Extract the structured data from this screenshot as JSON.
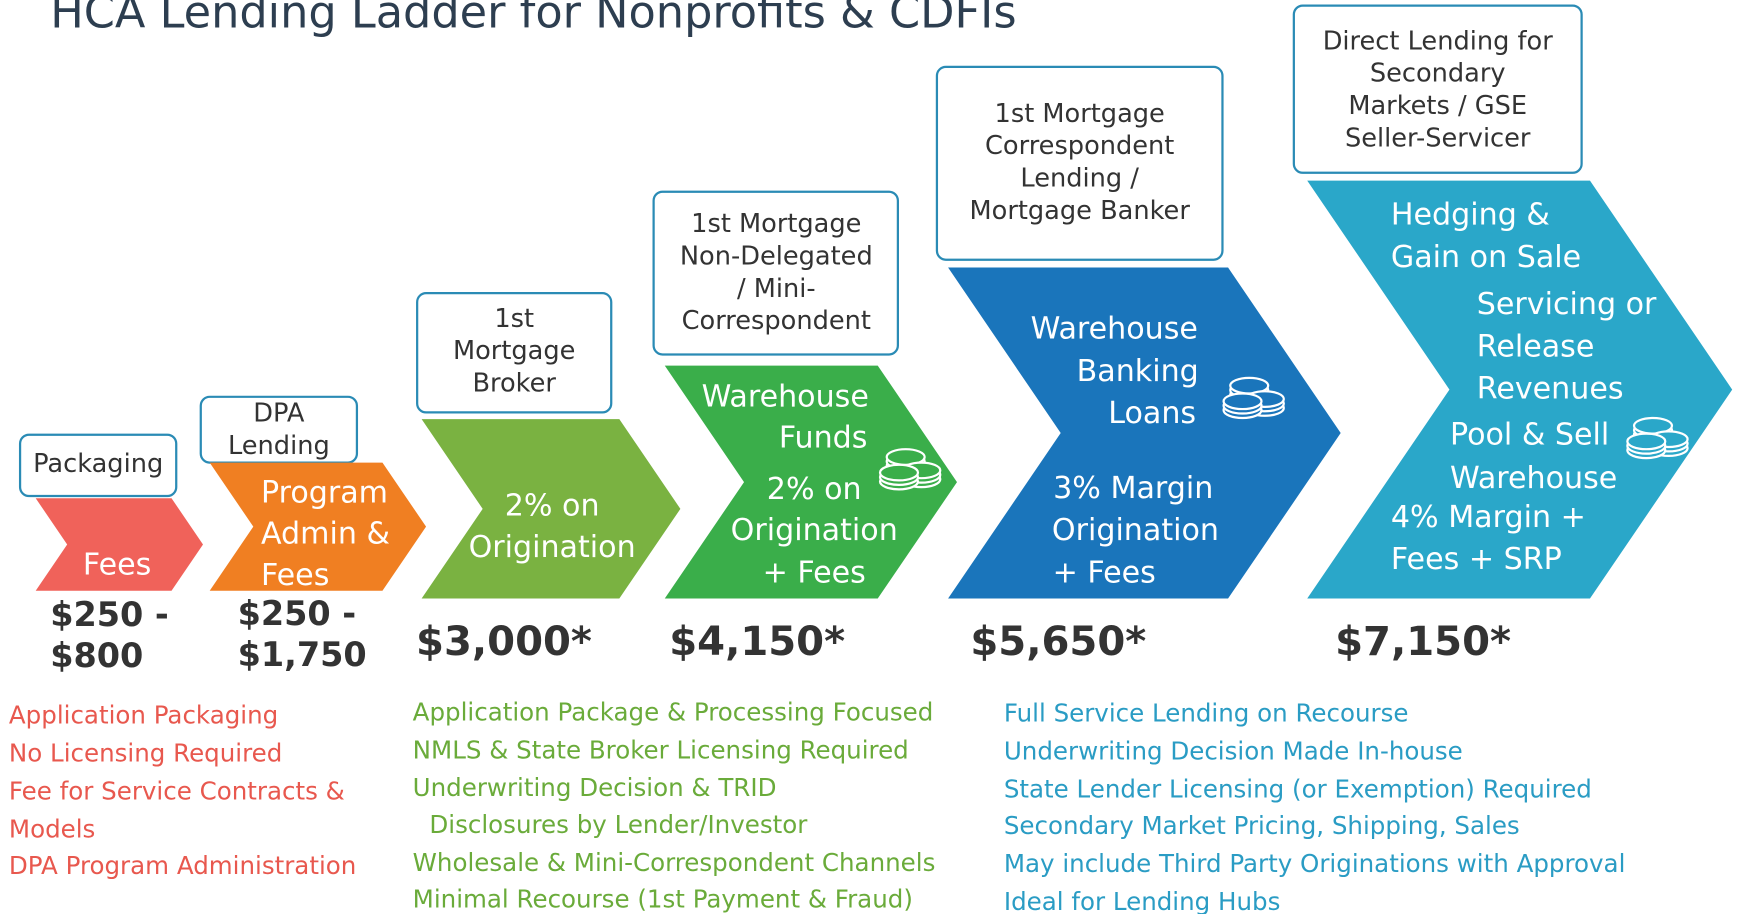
{
  "title": "HCA Lending Ladder for Nonprofits & CDFIs",
  "steps": [
    {
      "label": [
        "Packaging"
      ],
      "text": [
        "Fees"
      ],
      "amount": [
        "$250 -",
        "$800"
      ]
    },
    {
      "label": [
        "DPA",
        "Lending"
      ],
      "text": [
        "Program",
        "Admin &",
        "Fees"
      ],
      "amount": [
        "$250 -",
        "$1,750"
      ]
    },
    {
      "label": [
        "1st",
        "Mortgage",
        "Broker"
      ],
      "text": [
        "2% on",
        "Origination"
      ],
      "amount": [
        "$3,000*"
      ]
    },
    {
      "label": [
        "1st Mortgage",
        "Non-Delegated",
        "/ Mini-",
        "Correspondent"
      ],
      "text": [
        "Warehouse",
        "Funds",
        "2% on",
        "Origination",
        "+ Fees"
      ],
      "amount": [
        "$4,150*"
      ]
    },
    {
      "label": [
        "1st Mortgage",
        "Correspondent",
        "Lending /",
        "Mortgage Banker"
      ],
      "text": [
        "Warehouse",
        "Banking",
        "Loans",
        "3% Margin",
        "Origination",
        "+ Fees"
      ],
      "amount": [
        "$5,650*"
      ]
    },
    {
      "label": [
        "Direct Lending for",
        "Secondary",
        "Markets / GSE",
        "Seller-Servicer"
      ],
      "text": [
        "Hedging &",
        "Gain on Sale",
        "Servicing or",
        "Release",
        "Revenues",
        "Pool & Sell",
        "Warehouse",
        "4% Margin +",
        "Fees + SRP"
      ],
      "amount": [
        "$7,150*"
      ]
    }
  ],
  "notes": [
    [
      "Application Packaging",
      "No Licensing Required",
      "Fee for Service Contracts &",
      "Models",
      "DPA Program Administration"
    ],
    [
      "Application Package & Processing Focused",
      "NMLS & State Broker Licensing Required",
      "Underwriting Decision & TRID",
      "Disclosures by Lender/Investor",
      "Wholesale & Mini-Correspondent Channels",
      "Minimal Recourse (1st Payment & Fraud)"
    ],
    [
      "Full Service Lending on Recourse",
      "Underwriting Decision Made In-house",
      "State Lender Licensing (or Exemption) Required",
      "Secondary Market Pricing, Shipping, Sales",
      "May include Third Party Originations with Approval",
      "Ideal for Lending Hubs"
    ]
  ]
}
